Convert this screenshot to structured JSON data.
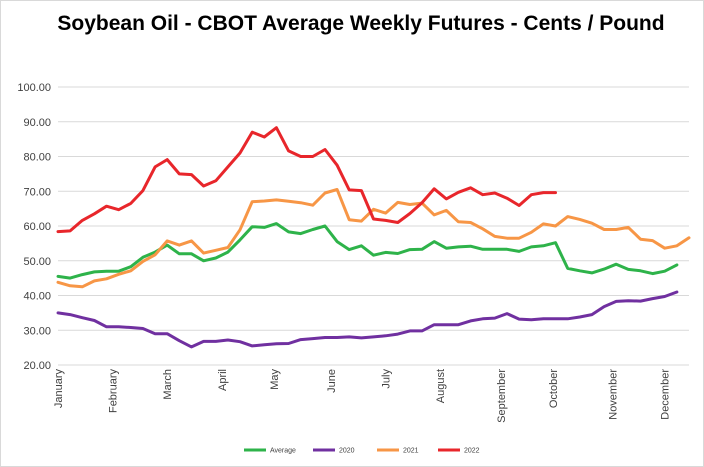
{
  "chart_data": {
    "type": "line",
    "title": "Soybean Oil - CBOT Average Weekly Futures - Cents / Pound",
    "xlabel": "",
    "ylabel": "",
    "ylim": [
      20,
      100
    ],
    "yticks": [
      "20.00",
      "30.00",
      "40.00",
      "50.00",
      "60.00",
      "70.00",
      "80.00",
      "90.00",
      "100.00"
    ],
    "month_labels": [
      "January",
      "February",
      "March",
      "April",
      "May",
      "June",
      "July",
      "August",
      "September",
      "October",
      "November",
      "December"
    ],
    "month_label_weeks": [
      1,
      5.5,
      10,
      14.5,
      18.8,
      23.5,
      28,
      32.5,
      37.5,
      41.8,
      46.7,
      51
    ],
    "grid": true,
    "legend_position": "bottom",
    "series": [
      {
        "name": "Average",
        "color": "#2eb34a",
        "values": [
          45.5,
          45.0,
          46.0,
          46.8,
          47.0,
          47.0,
          48.3,
          51.0,
          52.5,
          54.5,
          52.0,
          52.0,
          50.0,
          50.8,
          52.5,
          56.0,
          59.8,
          59.6,
          60.7,
          58.3,
          57.8,
          59.0,
          60.0,
          55.5,
          53.2,
          54.3,
          51.6,
          52.4,
          52.1,
          53.2,
          53.3,
          55.5,
          53.6,
          54.0,
          54.2,
          53.3,
          53.3,
          53.3,
          52.7,
          54.0,
          54.3,
          55.2,
          47.8,
          47.1,
          46.5,
          47.6,
          49.0,
          47.5,
          47.1,
          46.3,
          47.0,
          48.8
        ]
      },
      {
        "name": "2020",
        "color": "#7030a0",
        "values": [
          35.0,
          34.5,
          33.6,
          32.8,
          31.0,
          31.0,
          30.8,
          30.5,
          29.0,
          29.0,
          27.0,
          25.2,
          26.8,
          26.8,
          27.2,
          26.7,
          25.5,
          25.8,
          26.1,
          26.2,
          27.3,
          27.6,
          27.9,
          27.9,
          28.1,
          27.8,
          28.1,
          28.4,
          28.9,
          29.8,
          29.8,
          31.6,
          31.6,
          31.6,
          32.7,
          33.3,
          33.5,
          34.8,
          33.2,
          33.0,
          33.3,
          33.3,
          33.3,
          33.8,
          34.5,
          36.8,
          38.3,
          38.5,
          38.4,
          39.1,
          39.7,
          41.0
        ]
      },
      {
        "name": "2021",
        "color": "#f79646",
        "values": [
          43.8,
          42.8,
          42.5,
          44.2,
          44.8,
          46.1,
          47.1,
          49.8,
          51.7,
          55.7,
          54.5,
          55.7,
          52.2,
          53.0,
          53.8,
          58.9,
          67.0,
          67.2,
          67.5,
          67.1,
          66.7,
          66.0,
          69.5,
          70.5,
          61.8,
          61.4,
          64.8,
          63.7,
          66.8,
          66.2,
          66.6,
          63.2,
          64.5,
          61.2,
          61.0,
          59.2,
          57.0,
          56.5,
          56.5,
          58.2,
          60.6,
          60.0,
          62.7,
          61.9,
          60.8,
          59.0,
          59.0,
          59.6,
          56.2,
          55.8,
          53.6,
          54.3,
          56.6
        ]
      },
      {
        "name": "2022",
        "color": "#e8262b",
        "values": [
          58.4,
          58.6,
          61.6,
          63.5,
          65.7,
          64.7,
          66.5,
          70.2,
          77.0,
          79.1,
          75.0,
          74.8,
          71.5,
          73.0,
          77.0,
          81.0,
          87.0,
          85.6,
          88.3,
          81.6,
          80.0,
          80.0,
          82.0,
          77.5,
          70.4,
          70.2,
          62.0,
          61.6,
          61.0,
          63.6,
          66.7,
          70.7,
          67.8,
          69.7,
          71.0,
          69.0,
          69.5,
          68.0,
          65.9,
          69.0,
          69.6,
          69.6
        ]
      }
    ]
  }
}
